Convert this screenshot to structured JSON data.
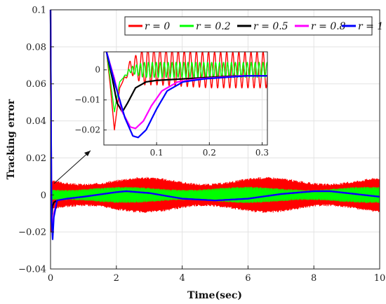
{
  "chart_data": [
    {
      "type": "line",
      "xlabel": "Time(sec)",
      "ylabel": "Tracking error",
      "xlim": [
        0,
        10
      ],
      "ylim": [
        -0.04,
        0.1
      ],
      "x_ticks": [
        0,
        2,
        4,
        6,
        8,
        10
      ],
      "x_tick_labels": [
        "0",
        "2",
        "4",
        "6",
        "8",
        "10"
      ],
      "y_ticks": [
        -0.04,
        -0.02,
        0,
        0.02,
        0.04,
        0.06,
        0.08,
        0.1
      ],
      "y_tick_labels": [
        "−0.04",
        "−0.02",
        "0",
        "0.02",
        "0.04",
        "0.06",
        "0.08",
        "0.1"
      ],
      "grid": true,
      "legend_position": "top-right",
      "series": [
        {
          "name": "r = 0",
          "color": "#ff0000",
          "oscillation_band": [
            -0.009,
            0.009
          ],
          "x": [
            0,
            0.02,
            0.05,
            0.1,
            0.3,
            0.5,
            1,
            2,
            3,
            4,
            5,
            6,
            7,
            8,
            9,
            10
          ],
          "y": [
            0,
            -0.02,
            -0.005,
            0,
            0,
            0,
            0,
            0,
            0,
            0,
            0,
            0,
            0,
            0,
            0,
            0
          ]
        },
        {
          "name": "r = 0.2",
          "color": "#00ff00",
          "oscillation_band": [
            -0.004,
            0.004
          ],
          "x": [
            0,
            0.02,
            0.05,
            0.1,
            0.3,
            0.5,
            1,
            2,
            3,
            4,
            5,
            6,
            7,
            8,
            9,
            10
          ],
          "y": [
            0,
            -0.014,
            -0.004,
            0,
            0,
            0,
            0,
            0,
            0,
            0,
            0,
            0,
            0,
            0,
            0,
            0
          ]
        },
        {
          "name": "r = 0.5",
          "color": "#000000",
          "x": [
            0,
            0.03,
            0.06,
            0.1,
            0.2,
            0.5,
            1,
            2,
            2.3,
            3,
            4,
            5,
            6,
            7,
            8,
            8.5,
            9,
            10
          ],
          "y": [
            0.1,
            -0.014,
            -0.006,
            -0.004,
            -0.003,
            -0.002,
            -0.001,
            0.0015,
            0.002,
            0.001,
            -0.002,
            -0.003,
            -0.002,
            0.0005,
            0.002,
            0.002,
            0.001,
            -0.001
          ]
        },
        {
          "name": "r = 0.8",
          "color": "#ff00ff",
          "x": [
            0,
            0.03,
            0.06,
            0.1,
            0.2,
            0.5,
            1,
            2,
            2.3,
            3,
            4,
            5,
            6,
            7,
            8,
            8.5,
            9,
            10
          ],
          "y": [
            0.1,
            -0.01,
            -0.02,
            -0.01,
            -0.003,
            -0.002,
            -0.001,
            0.0015,
            0.002,
            0.001,
            -0.002,
            -0.003,
            -0.002,
            0.0005,
            0.002,
            0.002,
            0.001,
            -0.001
          ]
        },
        {
          "name": "r = 1",
          "color": "#0000ff",
          "x": [
            0,
            0.03,
            0.065,
            0.1,
            0.2,
            0.5,
            1,
            2,
            2.3,
            3,
            4,
            5,
            6,
            7,
            8,
            8.5,
            9,
            10
          ],
          "y": [
            0.1,
            -0.012,
            -0.024,
            -0.012,
            -0.003,
            -0.002,
            -0.001,
            0.0015,
            0.002,
            0.001,
            -0.002,
            -0.003,
            -0.002,
            0.0005,
            0.002,
            0.002,
            0.001,
            -0.001
          ]
        }
      ]
    },
    {
      "type": "line",
      "role": "inset zoom",
      "xlim": [
        0,
        0.31
      ],
      "ylim": [
        -0.025,
        0.006
      ],
      "x_ticks": [
        0.1,
        0.2,
        0.3
      ],
      "x_tick_labels": [
        "0.1",
        "0.2",
        "0.3"
      ],
      "y_ticks": [
        -0.02,
        -0.01,
        0
      ],
      "y_tick_labels": [
        "−0.02",
        "−0.01",
        "0"
      ],
      "grid": true,
      "series": [
        {
          "name": "r = 0",
          "color": "#ff0000",
          "oscillation_amplitude": 0.006,
          "x": [
            0.005,
            0.012,
            0.02,
            0.03,
            0.05,
            0.1,
            0.2,
            0.3,
            0.31
          ],
          "y": [
            0.006,
            -0.005,
            -0.02,
            -0.006,
            0.001,
            0.001,
            0,
            0,
            0
          ]
        },
        {
          "name": "r = 0.2",
          "color": "#00ff00",
          "oscillation_amplitude": 0.0025,
          "x": [
            0.005,
            0.012,
            0.02,
            0.03,
            0.05,
            0.1,
            0.2,
            0.3,
            0.31
          ],
          "y": [
            0.006,
            -0.003,
            -0.014,
            -0.004,
            0,
            0,
            0,
            0,
            0
          ]
        },
        {
          "name": "r = 0.5",
          "color": "#000000",
          "x": [
            0.005,
            0.015,
            0.025,
            0.035,
            0.045,
            0.06,
            0.08,
            0.1,
            0.15,
            0.2,
            0.25,
            0.31
          ],
          "y": [
            0.006,
            -0.002,
            -0.011,
            -0.014,
            -0.011,
            -0.006,
            -0.004,
            -0.0035,
            -0.003,
            -0.0025,
            -0.002,
            -0.002
          ]
        },
        {
          "name": "r = 0.8",
          "color": "#ff00ff",
          "x": [
            0.005,
            0.02,
            0.035,
            0.05,
            0.06,
            0.075,
            0.09,
            0.11,
            0.14,
            0.18,
            0.22,
            0.26,
            0.31
          ],
          "y": [
            0.006,
            -0.003,
            -0.014,
            -0.019,
            -0.0195,
            -0.017,
            -0.012,
            -0.007,
            -0.004,
            -0.003,
            -0.0025,
            -0.002,
            -0.002
          ]
        },
        {
          "name": "r = 1",
          "color": "#0000ff",
          "x": [
            0.005,
            0.02,
            0.04,
            0.055,
            0.065,
            0.08,
            0.1,
            0.12,
            0.15,
            0.19,
            0.23,
            0.27,
            0.31
          ],
          "y": [
            0.006,
            -0.004,
            -0.016,
            -0.022,
            -0.0225,
            -0.02,
            -0.013,
            -0.007,
            -0.004,
            -0.003,
            -0.0025,
            -0.002,
            -0.002
          ]
        }
      ]
    }
  ]
}
